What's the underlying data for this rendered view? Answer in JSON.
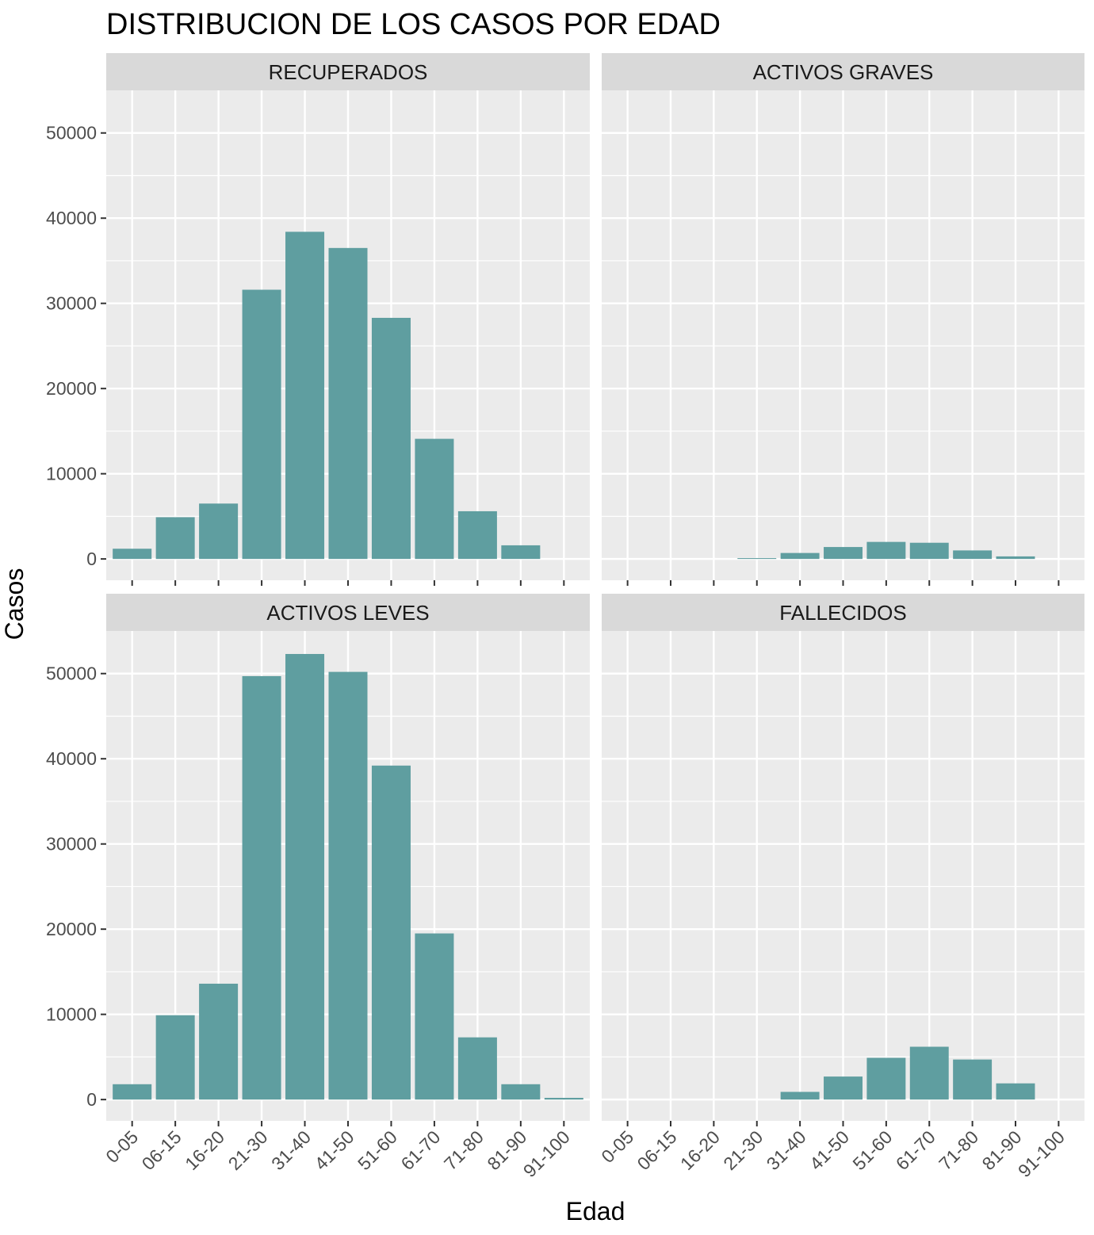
{
  "chart_data": {
    "type": "bar",
    "title": "DISTRIBUCION DE LOS CASOS POR EDAD",
    "xlabel": "Edad",
    "ylabel": "Casos",
    "categories": [
      "0-05",
      "06-15",
      "16-20",
      "21-30",
      "31-40",
      "41-50",
      "51-60",
      "61-70",
      "71-80",
      "81-90",
      "91-100"
    ],
    "y_ticks": [
      "0",
      "10000",
      "20000",
      "30000",
      "40000",
      "50000"
    ],
    "ylim": [
      -2500,
      55000
    ],
    "grid": true,
    "legend": "none",
    "bar_color": "#5f9ea0",
    "panel_background": "#ebebeb",
    "strip_background": "#d9d9d9",
    "panels": [
      {
        "name": "RECUPERADOS",
        "values": [
          1200,
          4900,
          6500,
          31600,
          38400,
          36500,
          28300,
          14100,
          5600,
          1600,
          0
        ]
      },
      {
        "name": "ACTIVOS GRAVES",
        "values": [
          0,
          0,
          0,
          100,
          700,
          1400,
          2000,
          1900,
          1000,
          300,
          0
        ]
      },
      {
        "name": "ACTIVOS LEVES",
        "values": [
          1800,
          9900,
          13600,
          49700,
          52300,
          50200,
          39200,
          19500,
          7300,
          1800,
          200
        ]
      },
      {
        "name": "FALLECIDOS",
        "values": [
          0,
          0,
          0,
          0,
          900,
          2700,
          4900,
          6200,
          4700,
          1900,
          0
        ]
      }
    ]
  }
}
